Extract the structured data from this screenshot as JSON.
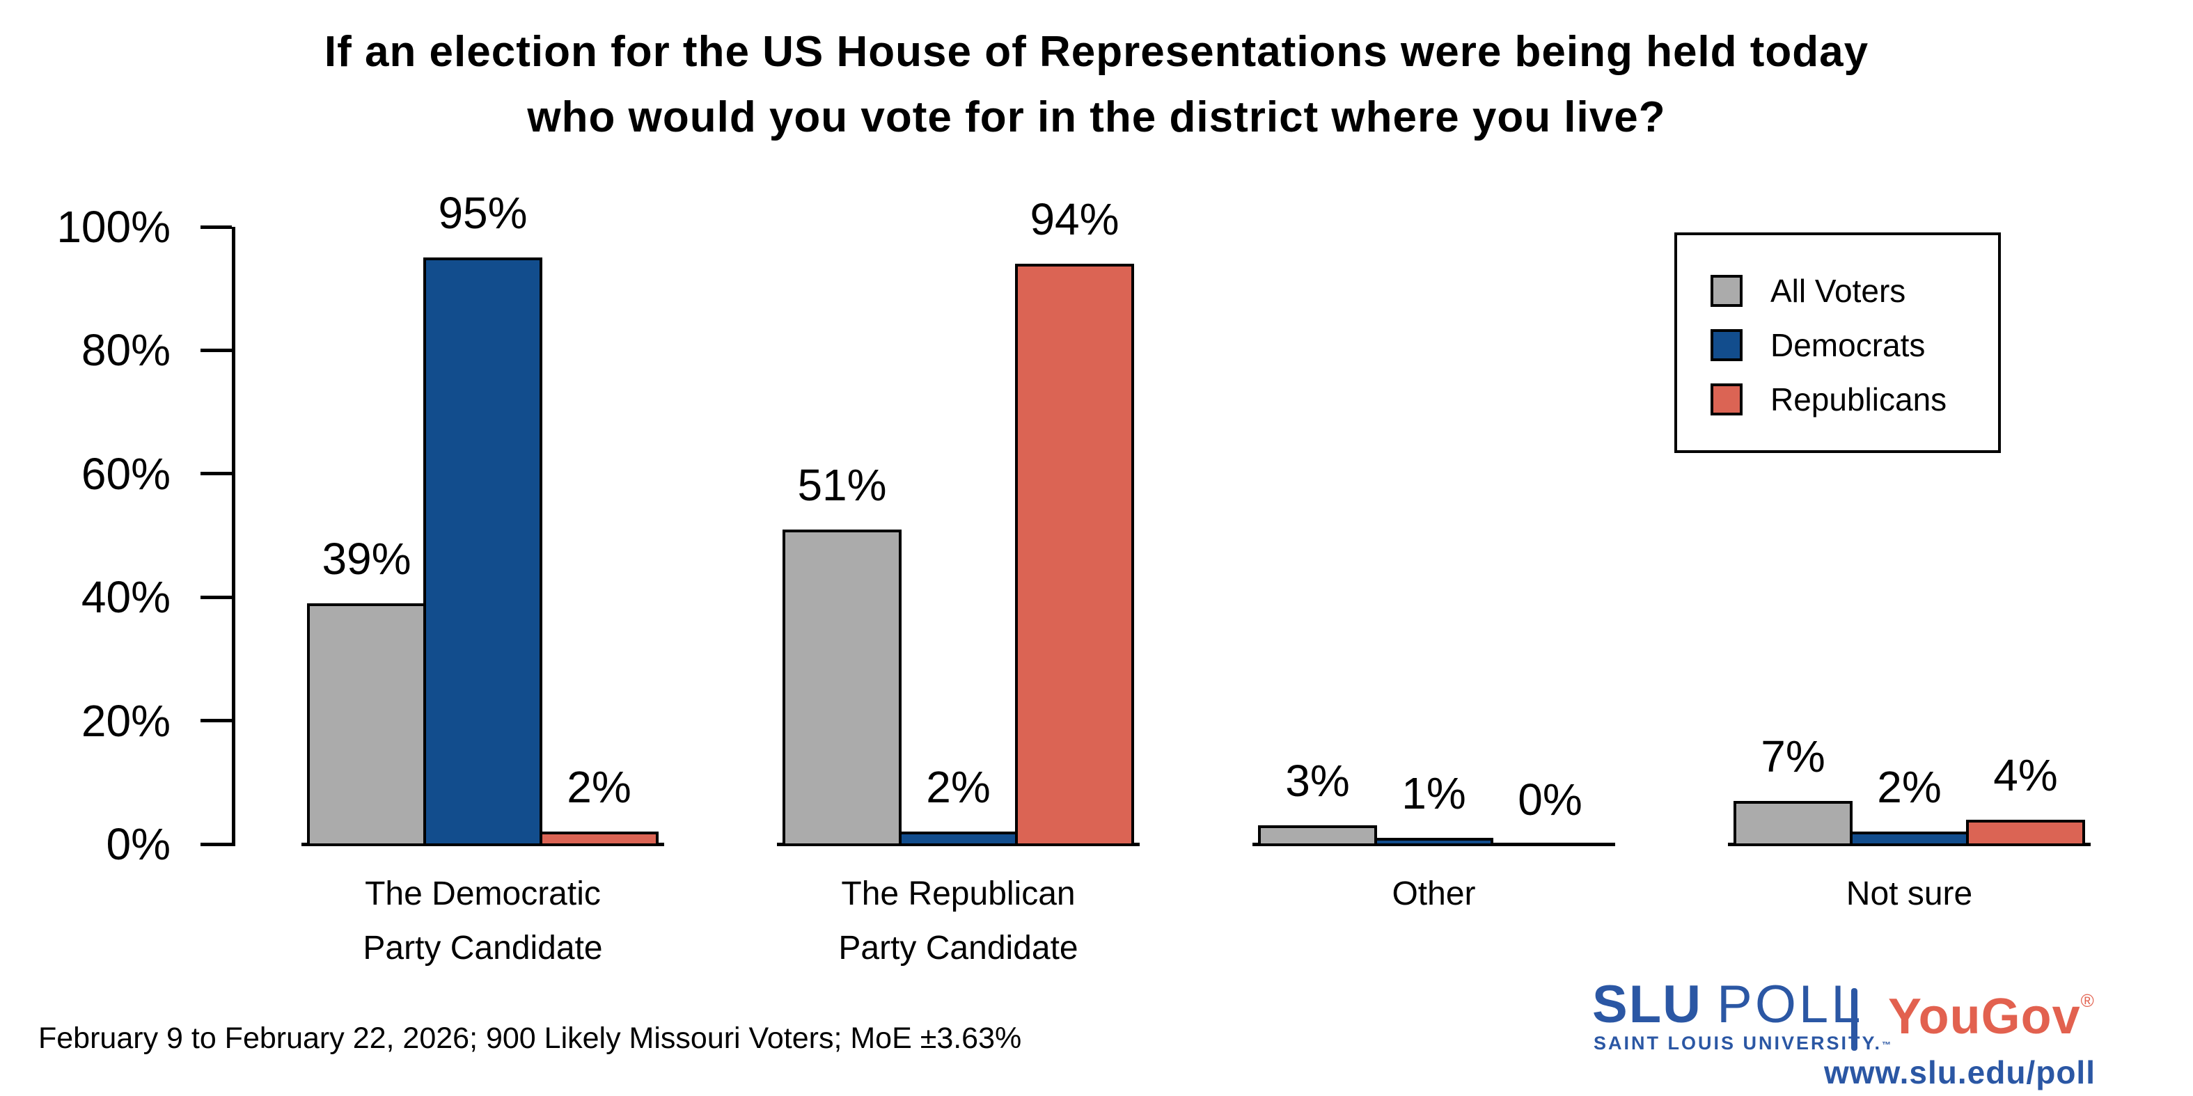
{
  "title": {
    "line1": "If an election for the US House of Representations were being held today",
    "line2": "who would you vote for in the district where you live?"
  },
  "y_axis": {
    "ticks": [
      "0%",
      "20%",
      "40%",
      "60%",
      "80%",
      "100%"
    ]
  },
  "chart_data": {
    "type": "bar",
    "title": "If an election for the US House of Representations were being held today who would you vote for in the district where you live?",
    "categories": [
      [
        "The Democratic",
        "Party Candidate"
      ],
      [
        "The Republican",
        "Party Candidate"
      ],
      [
        "Other"
      ],
      [
        "Not sure"
      ]
    ],
    "series": [
      {
        "name": "All Voters",
        "color": "#ABABAB",
        "values": [
          39,
          51,
          3,
          7
        ]
      },
      {
        "name": "Democrats",
        "color": "#124D8D",
        "values": [
          95,
          2,
          1,
          2
        ]
      },
      {
        "name": "Republicans",
        "color": "#DB6454",
        "values": [
          2,
          94,
          0,
          4
        ]
      }
    ],
    "value_label_suffix": "%",
    "ylim": [
      0,
      100
    ],
    "y_tick_step": 20,
    "grid": "off",
    "legend_position": "upper right"
  },
  "legend": {
    "items": [
      {
        "label": "All Voters",
        "color": "#ABABAB"
      },
      {
        "label": "Democrats",
        "color": "#124D8D"
      },
      {
        "label": "Republicans",
        "color": "#DB6454"
      }
    ]
  },
  "footer": {
    "note": "February 9 to February 22, 2026; 900 Likely Missouri Voters; MoE ±3.63%"
  },
  "branding": {
    "slu": "SLU",
    "poll": "POLL",
    "subtitle": "SAINT LOUIS UNIVERSITY.",
    "trademark": "™",
    "yougov": "YouGov",
    "registered": "®",
    "url": "www.slu.edu/poll",
    "slu_blue": "#2B57A4",
    "yougov_red": "#E2614F"
  }
}
